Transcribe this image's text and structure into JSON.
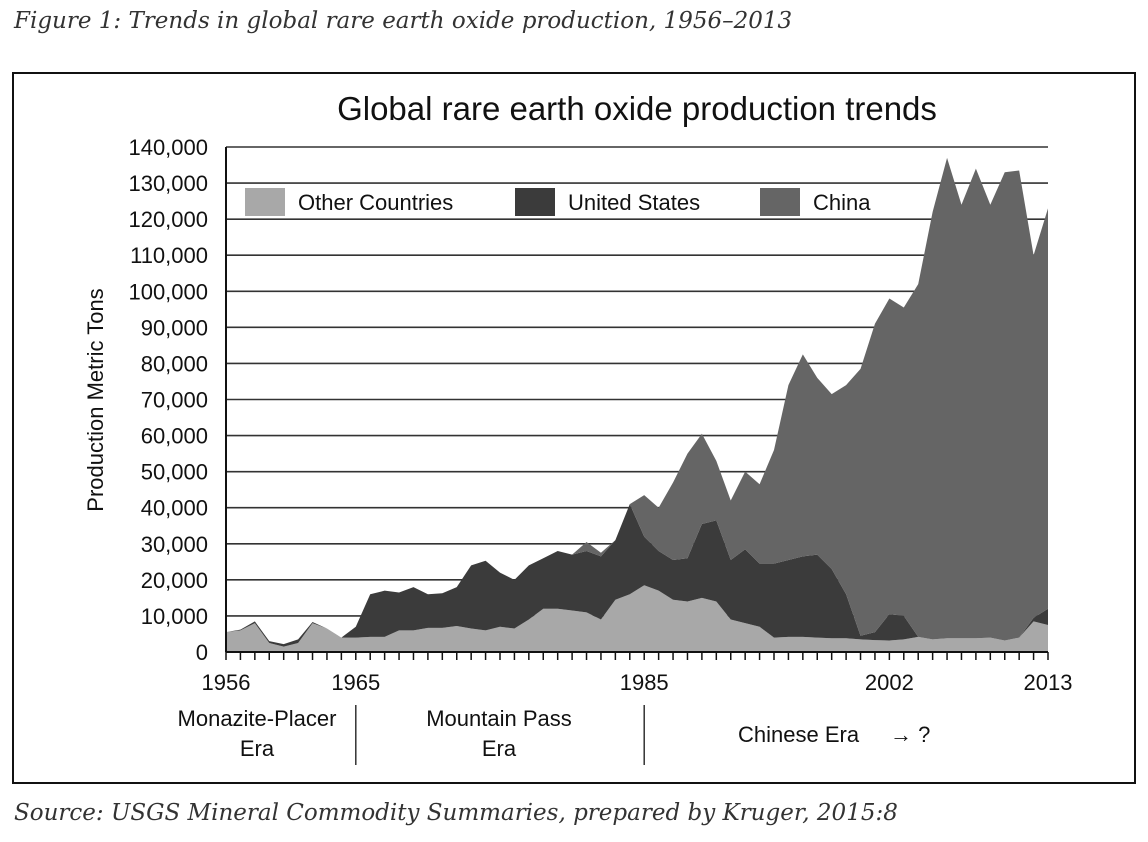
{
  "figure_caption": "Figure 1: Trends in global rare earth oxide production, 1956–2013",
  "source_caption": "Source: USGS Mineral Commodity Summaries, prepared by Kruger, 2015:8",
  "chart_data": {
    "type": "area",
    "stacked": true,
    "title": "Global rare earth oxide production trends",
    "xlabel": "",
    "ylabel": "Production Metric Tons",
    "xlim": [
      1956,
      2013
    ],
    "ylim": [
      0,
      140000
    ],
    "grid": true,
    "legend_placement": "top-left",
    "x_tick_labels": [
      "1956",
      "1965",
      "1985",
      "2002",
      "2013"
    ],
    "y_tick_labels": [
      "0",
      "10,000",
      "20,000",
      "30,000",
      "40,000",
      "50,000",
      "60,000",
      "70,000",
      "80,000",
      "90,000",
      "100,000",
      "110,000",
      "120,000",
      "130,000",
      "140,000"
    ],
    "eras": [
      {
        "label_lines": [
          "Monazite-Placer",
          "Era"
        ],
        "start": 1956,
        "end": 1965
      },
      {
        "label_lines": [
          "Mountain Pass",
          "Era"
        ],
        "start": 1965,
        "end": 1985
      },
      {
        "label_lines": [
          "Chinese Era",
          "→ ?"
        ],
        "start": 1985,
        "end": 2013
      }
    ],
    "x_start": 1956,
    "series": [
      {
        "name": "Other Countries",
        "color": "#a8a8a8",
        "values": [
          5500,
          6000,
          8000,
          2500,
          1500,
          2500,
          8000,
          6500,
          4000,
          4000,
          4200,
          4200,
          6000,
          6000,
          6700,
          6700,
          7200,
          6500,
          6000,
          7000,
          6500,
          9000,
          12000,
          12000,
          11500,
          11000,
          9000,
          14500,
          16000,
          18500,
          17000,
          14500,
          14000,
          15000,
          14000,
          9000,
          8000,
          7000,
          4000,
          4200,
          4200,
          4000,
          3800,
          3800,
          3500,
          3300,
          3200,
          3500,
          4200,
          3500,
          3800,
          3800,
          3800,
          4000,
          3200,
          4000,
          8500,
          7500
        ]
      },
      {
        "name": "United States",
        "color": "#3b3b3b",
        "values": [
          0,
          200,
          500,
          500,
          700,
          1000,
          300,
          0,
          0,
          3000,
          11800,
          12800,
          10500,
          12000,
          9300,
          9600,
          10800,
          17500,
          19300,
          15000,
          13500,
          15000,
          14000,
          16000,
          15500,
          17000,
          17500,
          16500,
          25000,
          13500,
          11000,
          11000,
          12000,
          20500,
          22500,
          16500,
          20500,
          17500,
          20500,
          21300,
          22300,
          23000,
          19200,
          12200,
          1000,
          2200,
          7300,
          6500,
          0,
          0,
          0,
          0,
          0,
          0,
          0,
          0,
          1000,
          4500
        ]
      },
      {
        "name": "China",
        "color": "#656565",
        "values": [
          0,
          0,
          0,
          0,
          0,
          0,
          0,
          0,
          0,
          0,
          0,
          0,
          0,
          0,
          0,
          0,
          0,
          0,
          0,
          0,
          0,
          0,
          0,
          0,
          0,
          2500,
          1000,
          0,
          0,
          11500,
          12000,
          21500,
          29000,
          25000,
          16500,
          16500,
          21500,
          22000,
          31500,
          48500,
          56000,
          49000,
          48500,
          58000,
          74000,
          85500,
          87500,
          85500,
          97800,
          118500,
          133200,
          120200,
          130200,
          120000,
          129800,
          129500,
          100500,
          111000
        ]
      }
    ]
  }
}
